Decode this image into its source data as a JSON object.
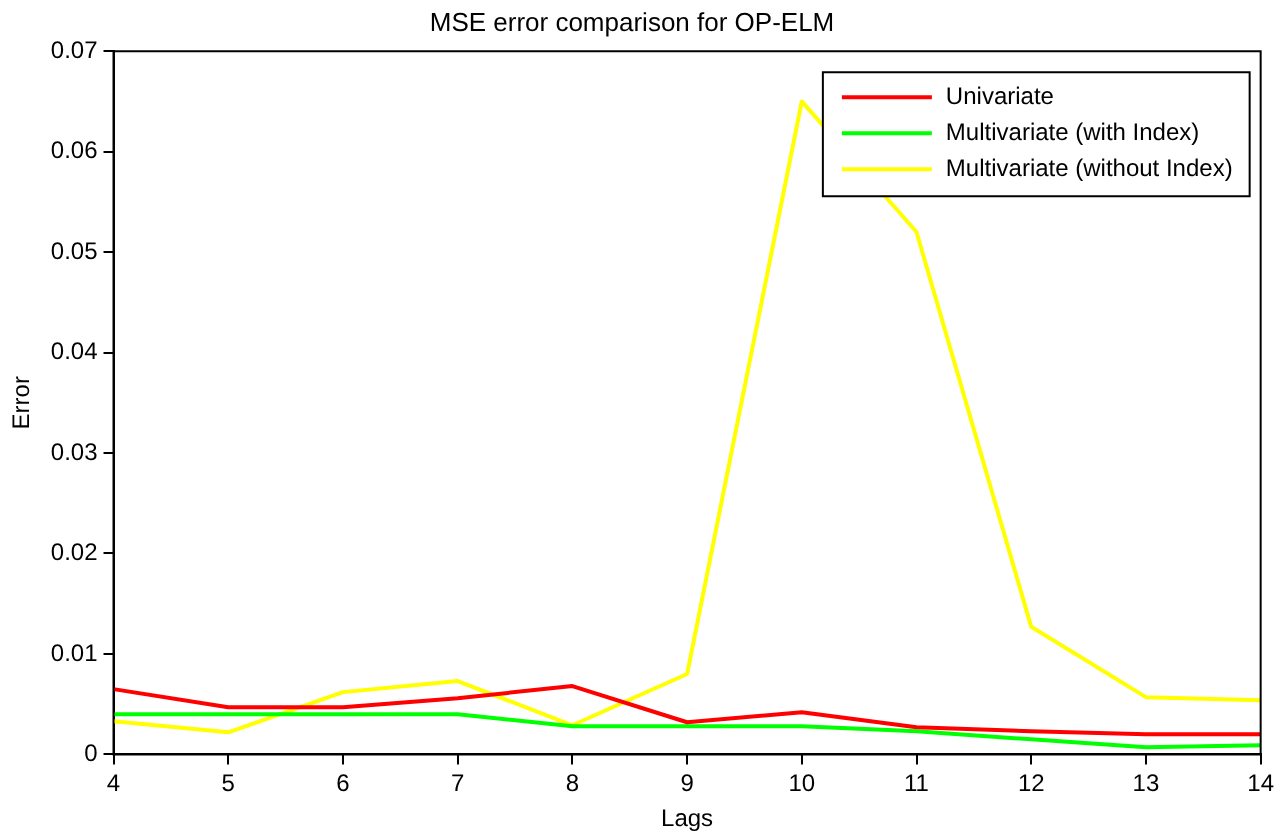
{
  "chart_data": {
    "type": "line",
    "title": "MSE error comparison for OP-ELM",
    "xlabel": "Lags",
    "ylabel": "Error",
    "x": [
      4,
      5,
      6,
      7,
      8,
      9,
      10,
      11,
      12,
      13,
      14
    ],
    "series": [
      {
        "name": "Univariate",
        "color": "#ff0000",
        "values": [
          0.0065,
          0.0047,
          0.0047,
          0.0056,
          0.0068,
          0.0032,
          0.0042,
          0.0027,
          0.0023,
          0.002,
          0.002
        ]
      },
      {
        "name": "Multivariate (with Index)",
        "color": "#00ff00",
        "values": [
          0.004,
          0.004,
          0.004,
          0.004,
          0.0028,
          0.0028,
          0.0028,
          0.0023,
          0.0015,
          0.0007,
          0.0009
        ]
      },
      {
        "name": "Multivariate (without Index)",
        "color": "#ffff00",
        "values": [
          0.0033,
          0.0022,
          0.0062,
          0.0073,
          0.0029,
          0.008,
          0.065,
          0.052,
          0.0127,
          0.0057,
          0.0054
        ]
      }
    ],
    "xlim": [
      4,
      14
    ],
    "xticks": [
      4,
      5,
      6,
      7,
      8,
      9,
      10,
      11,
      12,
      13,
      14
    ],
    "ylim": [
      0,
      0.07
    ],
    "yticks": [
      0,
      0.01,
      0.02,
      0.03,
      0.04,
      0.05,
      0.06,
      0.07
    ],
    "grid": false,
    "legend": "top right",
    "marker": "none",
    "line_style": "solid"
  }
}
